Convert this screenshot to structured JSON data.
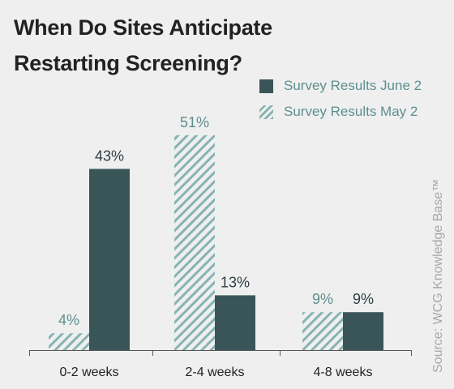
{
  "title": "When Do Sites Anticipate Restarting Screening?",
  "source": "Source: WCG Knowledge Base™",
  "legend": {
    "june": "Survey Results June 2",
    "may": "Survey Results May 2"
  },
  "colors": {
    "june": "#3a5558",
    "may_hatch": "#87b3b3",
    "may_label": "#5e8f8f",
    "june_label": "#2e3f41",
    "background": "#efefef",
    "axis": "#555555"
  },
  "chart_data": {
    "type": "bar",
    "title": "When Do Sites Anticipate Restarting Screening?",
    "categories": [
      "0-2 weeks",
      "2-4 weeks",
      "4-8 weeks"
    ],
    "series": [
      {
        "name": "Survey Results May 2",
        "values": [
          4,
          51,
          9
        ],
        "labels": [
          "4%",
          "51%",
          "9%"
        ]
      },
      {
        "name": "Survey Results June 2",
        "values": [
          43,
          13,
          9
        ],
        "labels": [
          "43%",
          "13%",
          "9%"
        ]
      }
    ],
    "unit": "%",
    "ylim": [
      0,
      51
    ],
    "grid": false,
    "legend_position": "top-right"
  }
}
